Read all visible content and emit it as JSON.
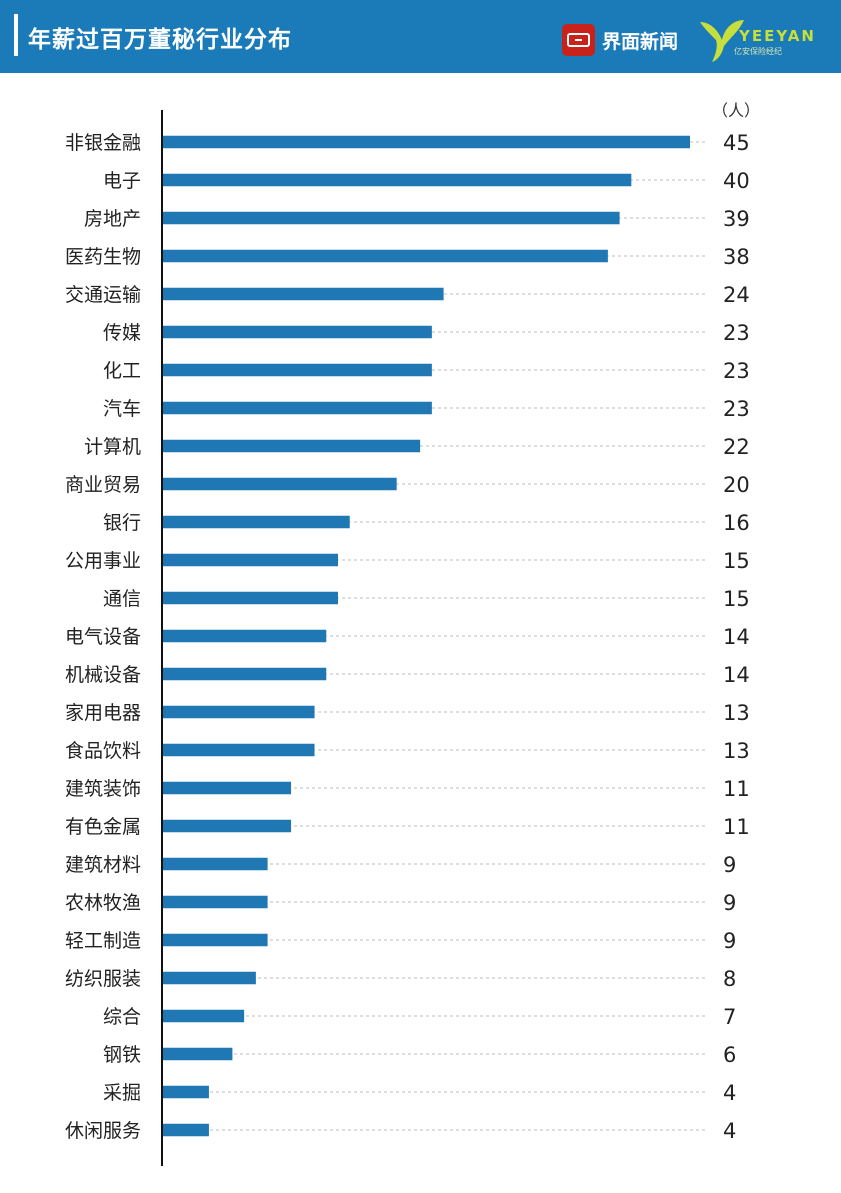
{
  "header": {
    "title": "年薪过百万董秘行业分布",
    "logo_jiemian": "界面新闻",
    "logo_yeeyan_word": "YEEYAN",
    "logo_yeeyan_sub": "亿安保险经纪"
  },
  "colors": {
    "header_bg": "#1b7ab8",
    "bar": "#1f77b4",
    "jiemian_red": "#c9221b",
    "yeeyan_green": "#c7df3c"
  },
  "chart_data": {
    "type": "bar",
    "orientation": "horizontal",
    "unit_label": "（人）",
    "categories": [
      "非银金融",
      "电子",
      "房地产",
      "医药生物",
      "交通运输",
      "传媒",
      "化工",
      "汽车",
      "计算机",
      "商业贸易",
      "银行",
      "公用事业",
      "通信",
      "电气设备",
      "机械设备",
      "家用电器",
      "食品饮料",
      "建筑装饰",
      "有色金属",
      "建筑材料",
      "农林牧渔",
      "轻工制造",
      "纺织服装",
      "综合",
      "钢铁",
      "采掘",
      "休闲服务"
    ],
    "values": [
      45,
      40,
      39,
      38,
      24,
      23,
      23,
      23,
      22,
      20,
      16,
      15,
      15,
      14,
      14,
      13,
      13,
      11,
      11,
      9,
      9,
      9,
      8,
      7,
      6,
      4,
      4
    ],
    "data_labels": [
      "45",
      "40",
      "39",
      "38",
      "24",
      "23",
      "23",
      "23",
      "22",
      "20",
      "16",
      "15",
      "15",
      "14",
      "14",
      "13",
      "13",
      "11",
      "11",
      "9",
      "9",
      "9",
      "8",
      "7",
      "6",
      "4",
      "4"
    ],
    "xlim": [
      0,
      45
    ],
    "grid": "dashed guide line per row",
    "legend": "none"
  }
}
